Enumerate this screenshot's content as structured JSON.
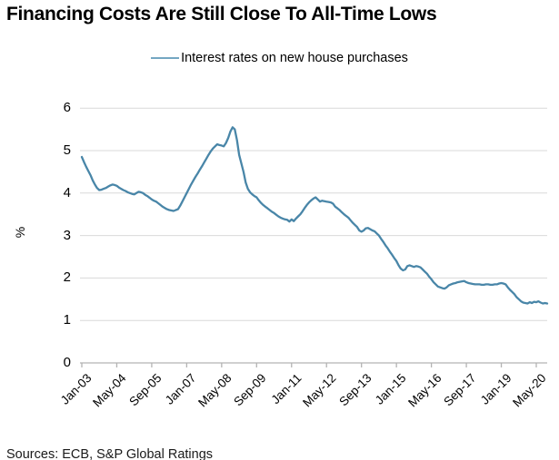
{
  "page": {
    "title": "Financing Costs Are Still Close To All-Time Lows",
    "sources": "Sources: ECB, S&P Global Ratings",
    "y_axis_title": "%"
  },
  "colors": {
    "line": "#4986a8",
    "legend_swatch": "#74a7c2",
    "grid": "#d9d9d9",
    "axis": "#b3b3b3",
    "text": "#000000"
  },
  "chart_data": {
    "type": "line",
    "title": "Financing Costs Are Still Close To All-Time Lows",
    "legend_position": "top",
    "legend": [
      "Interest rates on new house purchases"
    ],
    "xlabel": "",
    "ylabel": "%",
    "ylim": [
      0,
      6
    ],
    "y_ticks": [
      0,
      1,
      2,
      3,
      4,
      5,
      6
    ],
    "grid": "horizontal",
    "x_frequency": "monthly",
    "x_start": "Jan-03",
    "x_end": "Oct-20",
    "x_tick_labels": [
      "Jan-03",
      "May-04",
      "Sep-05",
      "Jan-07",
      "May-08",
      "Sep-09",
      "Jan-11",
      "May-12",
      "Sep-13",
      "Jan-15",
      "May-16",
      "Sep-17",
      "Jan-19",
      "May-20"
    ],
    "series": [
      {
        "name": "Interest rates on new house purchases",
        "values": [
          4.85,
          4.73,
          4.62,
          4.52,
          4.42,
          4.3,
          4.2,
          4.12,
          4.07,
          4.08,
          4.1,
          4.12,
          4.15,
          4.18,
          4.2,
          4.19,
          4.17,
          4.13,
          4.1,
          4.07,
          4.05,
          4.02,
          4.0,
          3.98,
          3.97,
          4.0,
          4.03,
          4.02,
          4.0,
          3.96,
          3.93,
          3.89,
          3.85,
          3.82,
          3.8,
          3.76,
          3.72,
          3.68,
          3.65,
          3.62,
          3.6,
          3.59,
          3.58,
          3.6,
          3.62,
          3.7,
          3.8,
          3.9,
          4.0,
          4.1,
          4.2,
          4.29,
          4.38,
          4.46,
          4.55,
          4.63,
          4.72,
          4.81,
          4.9,
          4.98,
          5.05,
          5.1,
          5.15,
          5.13,
          5.12,
          5.1,
          5.18,
          5.3,
          5.45,
          5.55,
          5.5,
          5.25,
          4.9,
          4.7,
          4.5,
          4.25,
          4.1,
          4.02,
          3.97,
          3.93,
          3.9,
          3.83,
          3.77,
          3.72,
          3.68,
          3.64,
          3.6,
          3.56,
          3.53,
          3.49,
          3.45,
          3.42,
          3.4,
          3.38,
          3.37,
          3.33,
          3.38,
          3.34,
          3.4,
          3.45,
          3.5,
          3.57,
          3.65,
          3.72,
          3.78,
          3.83,
          3.87,
          3.9,
          3.85,
          3.8,
          3.82,
          3.81,
          3.8,
          3.79,
          3.78,
          3.75,
          3.68,
          3.64,
          3.6,
          3.55,
          3.5,
          3.46,
          3.42,
          3.36,
          3.3,
          3.25,
          3.2,
          3.12,
          3.09,
          3.12,
          3.17,
          3.18,
          3.15,
          3.12,
          3.1,
          3.05,
          3.0,
          2.92,
          2.85,
          2.77,
          2.7,
          2.62,
          2.55,
          2.47,
          2.4,
          2.3,
          2.22,
          2.18,
          2.2,
          2.28,
          2.3,
          2.28,
          2.26,
          2.28,
          2.27,
          2.25,
          2.2,
          2.15,
          2.1,
          2.03,
          1.97,
          1.9,
          1.85,
          1.8,
          1.78,
          1.76,
          1.75,
          1.78,
          1.83,
          1.85,
          1.87,
          1.88,
          1.9,
          1.91,
          1.92,
          1.93,
          1.9,
          1.88,
          1.87,
          1.86,
          1.85,
          1.85,
          1.85,
          1.84,
          1.84,
          1.85,
          1.85,
          1.84,
          1.84,
          1.85,
          1.85,
          1.87,
          1.88,
          1.87,
          1.85,
          1.78,
          1.72,
          1.67,
          1.62,
          1.55,
          1.5,
          1.45,
          1.42,
          1.41,
          1.4,
          1.43,
          1.41,
          1.44,
          1.43,
          1.45,
          1.42,
          1.4,
          1.41,
          1.4
        ]
      }
    ]
  }
}
